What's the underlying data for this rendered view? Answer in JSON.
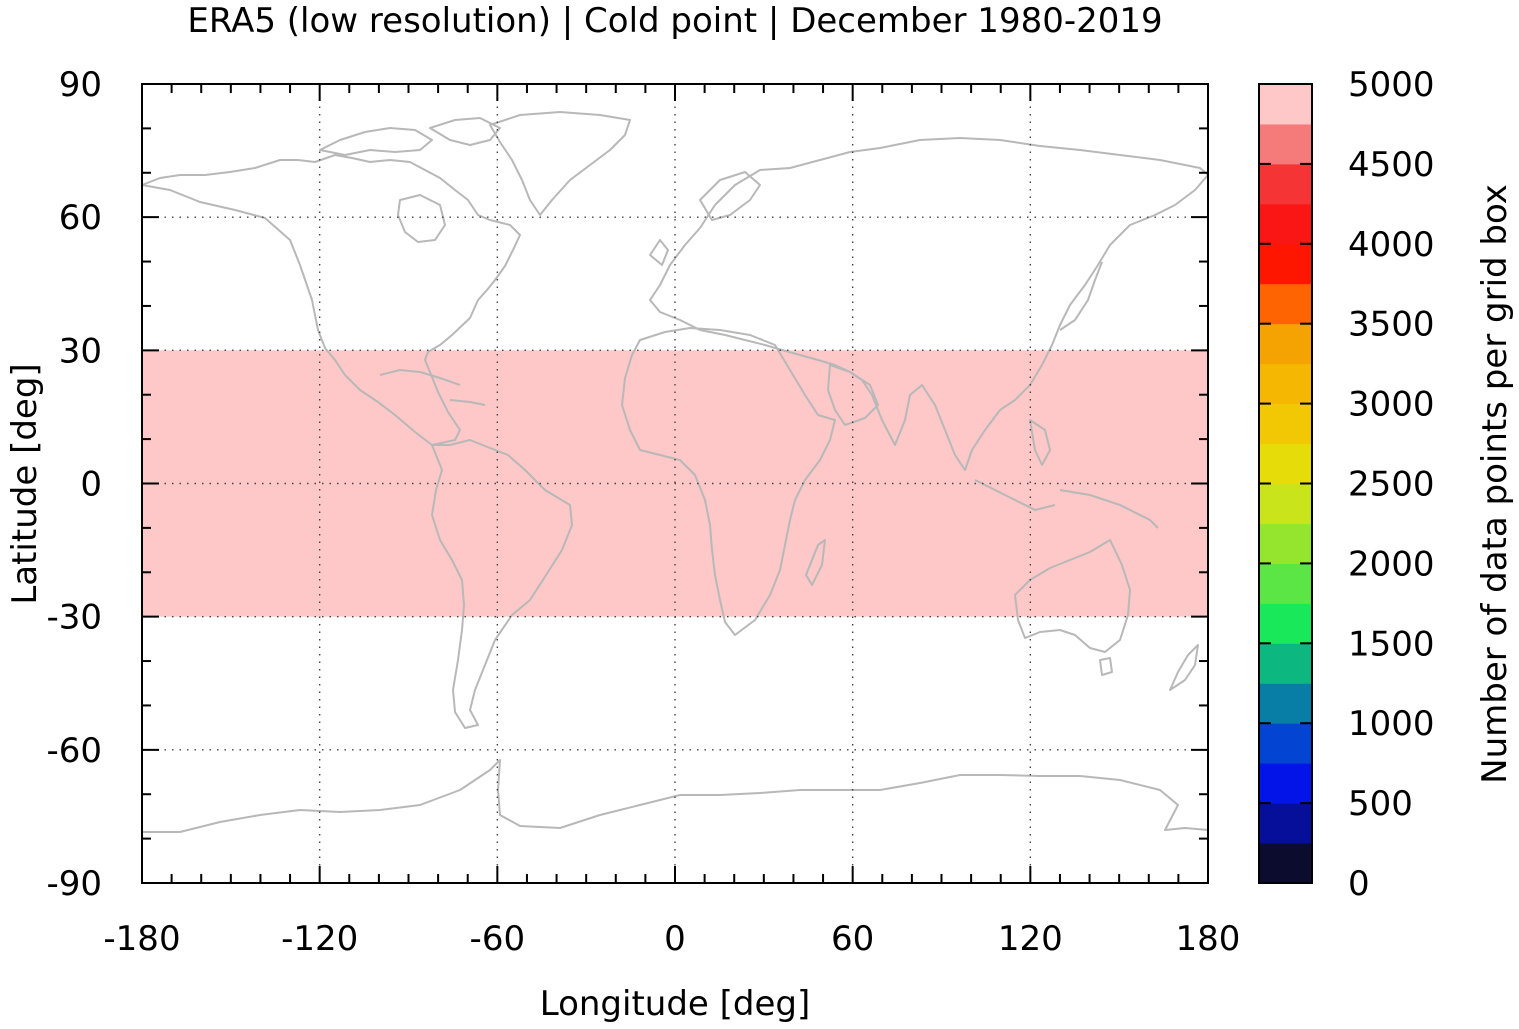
{
  "chart_data": {
    "type": "heatmap",
    "title": "ERA5 (low resolution) | Cold point | December 1980-2019",
    "xlabel": "Longitude [deg]",
    "ylabel": "Latitude [deg]",
    "xlim": [
      -180,
      180
    ],
    "ylim": [
      -90,
      90
    ],
    "xticks": [
      -180,
      -120,
      -60,
      0,
      60,
      120,
      180
    ],
    "yticks": [
      90,
      60,
      30,
      0,
      -30,
      -60,
      -90
    ],
    "xtick_labels": [
      "-180",
      "-120",
      "-60",
      "0",
      "60",
      "120",
      "180"
    ],
    "ytick_labels": [
      "90",
      "60",
      "30",
      "0",
      "-30",
      "-60",
      "-90"
    ],
    "grid": "dotted at labeled ticks",
    "coastlines_color": "#b8b8b8",
    "regions": [
      {
        "lon": [
          -180,
          180
        ],
        "lat": [
          -30,
          30
        ],
        "value": 5000
      }
    ],
    "colorbar": {
      "label": "Number of data points per grid box",
      "min": 0,
      "max": 5000,
      "step": 250,
      "tick_labels": [
        "0",
        "500",
        "1000",
        "1500",
        "2000",
        "2500",
        "3000",
        "3500",
        "4000",
        "4500",
        "5000"
      ],
      "colors": [
        "#0b0c2e",
        "#050f9a",
        "#0314e8",
        "#0444d2",
        "#087ea6",
        "#0cb880",
        "#18e85a",
        "#5ce646",
        "#95e52e",
        "#c9e41a",
        "#e5dc0a",
        "#f1c803",
        "#f5b702",
        "#f5a302",
        "#fe6401",
        "#fe1601",
        "#fb1616",
        "#f53535",
        "#f57a7a",
        "#fec8c8"
      ]
    }
  }
}
